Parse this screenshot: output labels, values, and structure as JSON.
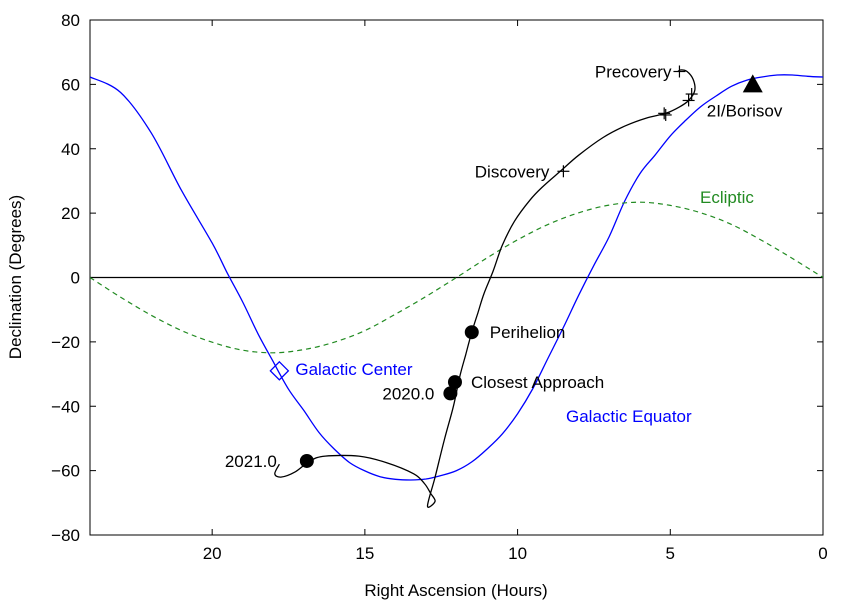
{
  "chart_data": {
    "type": "line",
    "xlabel": "Right Ascension (Hours)",
    "ylabel": "Declination (Degrees)",
    "xlim": [
      24,
      0
    ],
    "ylim": [
      -80,
      80
    ],
    "x_ticks": [
      20,
      15,
      10,
      5,
      0
    ],
    "y_ticks": [
      80,
      60,
      40,
      20,
      0,
      -20,
      -40,
      -60,
      -80
    ],
    "grid": false,
    "colors": {
      "trajectory": "#000000",
      "galactic_equator": "#0000ff",
      "ecliptic": "#228b22",
      "axes": "#000000"
    },
    "series": [
      {
        "name": "Galactic Equator",
        "color": "#0000ff",
        "style": "solid",
        "x": [
          24,
          23,
          22,
          21,
          20,
          19.5,
          19,
          18.5,
          18,
          17.5,
          17,
          16.5,
          16,
          15.5,
          15,
          14.5,
          14,
          13.5,
          13,
          12.5,
          12,
          11.5,
          11,
          10.5,
          10,
          9.5,
          9,
          8.5,
          8,
          7.5,
          7,
          6.5,
          6,
          5.5,
          5,
          4.5,
          4,
          3.5,
          3,
          2.5,
          2,
          1.5,
          1,
          0.5,
          0
        ],
        "y": [
          62.3,
          57.5,
          45,
          27,
          10.7,
          1.3,
          -7.6,
          -17.5,
          -26.2,
          -34.7,
          -41.3,
          -48.2,
          -53.3,
          -57.5,
          -60.1,
          -61.9,
          -62.7,
          -62.9,
          -62.6,
          -61.5,
          -60,
          -57.3,
          -53.3,
          -48.6,
          -42.3,
          -34.5,
          -25,
          -15.5,
          -5.5,
          3.8,
          12.7,
          23.6,
          32.2,
          38,
          44,
          48.8,
          53.1,
          56.4,
          59.4,
          61.3,
          62.3,
          62.9,
          62.9,
          62.5,
          62.3
        ]
      },
      {
        "name": "Ecliptic",
        "color": "#228b22",
        "style": "dashed",
        "x": [
          24,
          23,
          22,
          21,
          20,
          19,
          18,
          17,
          16,
          15,
          14,
          13,
          12,
          11,
          10,
          9,
          8,
          7,
          6,
          5,
          4,
          3,
          2,
          1,
          0
        ],
        "y": [
          0,
          -6.1,
          -11.7,
          -16.5,
          -20.1,
          -22.6,
          -23.4,
          -22.4,
          -20.1,
          -16.5,
          -11.4,
          -5.9,
          0,
          6.1,
          11.7,
          16.5,
          20.1,
          22.5,
          23.4,
          22.4,
          20.1,
          16.5,
          11.5,
          5.9,
          0
        ]
      },
      {
        "name": "2I/Borisov trajectory",
        "color": "#000000",
        "style": "solid",
        "x": [
          17.8,
          17.95,
          17.75,
          17.3,
          16.8,
          16.3,
          15.2,
          14.3,
          13.4,
          13.05,
          12.85,
          12.7,
          12.95,
          12.7,
          12.4,
          12.1,
          11.9,
          11.7,
          11.5,
          11.3,
          11.1,
          10.8,
          10.5,
          10.1,
          9.6,
          9.2,
          8.6,
          8,
          7.2,
          6.5,
          5.8,
          5.15,
          4.7,
          4.4,
          4.2,
          4.25,
          4.45,
          4.65,
          4.75
        ],
        "y": [
          -58,
          -61,
          -62,
          -60.5,
          -57,
          -55.5,
          -55.5,
          -57.5,
          -61,
          -64,
          -67,
          -69.5,
          -71,
          -62,
          -50.5,
          -40,
          -31,
          -24,
          -17,
          -11,
          -5,
          2,
          10,
          17.5,
          24,
          28,
          33,
          38,
          43.5,
          47,
          49.5,
          51,
          53,
          55,
          58,
          61.5,
          64,
          64.5,
          64
        ]
      }
    ],
    "points": [
      {
        "label": "Precovery",
        "marker": "plus",
        "x": 4.7,
        "y": 64
      },
      {
        "label": "",
        "marker": "plus",
        "x": 4.4,
        "y": 55
      },
      {
        "label": "",
        "marker": "plus",
        "x": 4.3,
        "y": 57
      },
      {
        "label": "",
        "marker": "plus",
        "x": 5.2,
        "y": 51
      },
      {
        "label": "",
        "marker": "plus",
        "x": 5.15,
        "y": 50.5
      },
      {
        "label": "Discovery",
        "marker": "plus",
        "x": 8.5,
        "y": 33
      },
      {
        "label": "Perihelion",
        "marker": "circle",
        "x": 11.5,
        "y": -17
      },
      {
        "label": "Closest Approach",
        "marker": "circle",
        "x": 12.05,
        "y": -32.5
      },
      {
        "label": "2020.0",
        "marker": "circle",
        "x": 12.2,
        "y": -36
      },
      {
        "label": "2021.0",
        "marker": "circle",
        "x": 16.9,
        "y": -57
      },
      {
        "label": "2I/Borisov",
        "marker": "triangle",
        "x": 2.3,
        "y": 60
      },
      {
        "label": "Galactic Center",
        "marker": "diamond",
        "x": 17.8,
        "y": -29
      }
    ],
    "annotations": {
      "ecliptic_label": "Ecliptic",
      "galactic_equator_label": "Galactic Equator"
    }
  }
}
